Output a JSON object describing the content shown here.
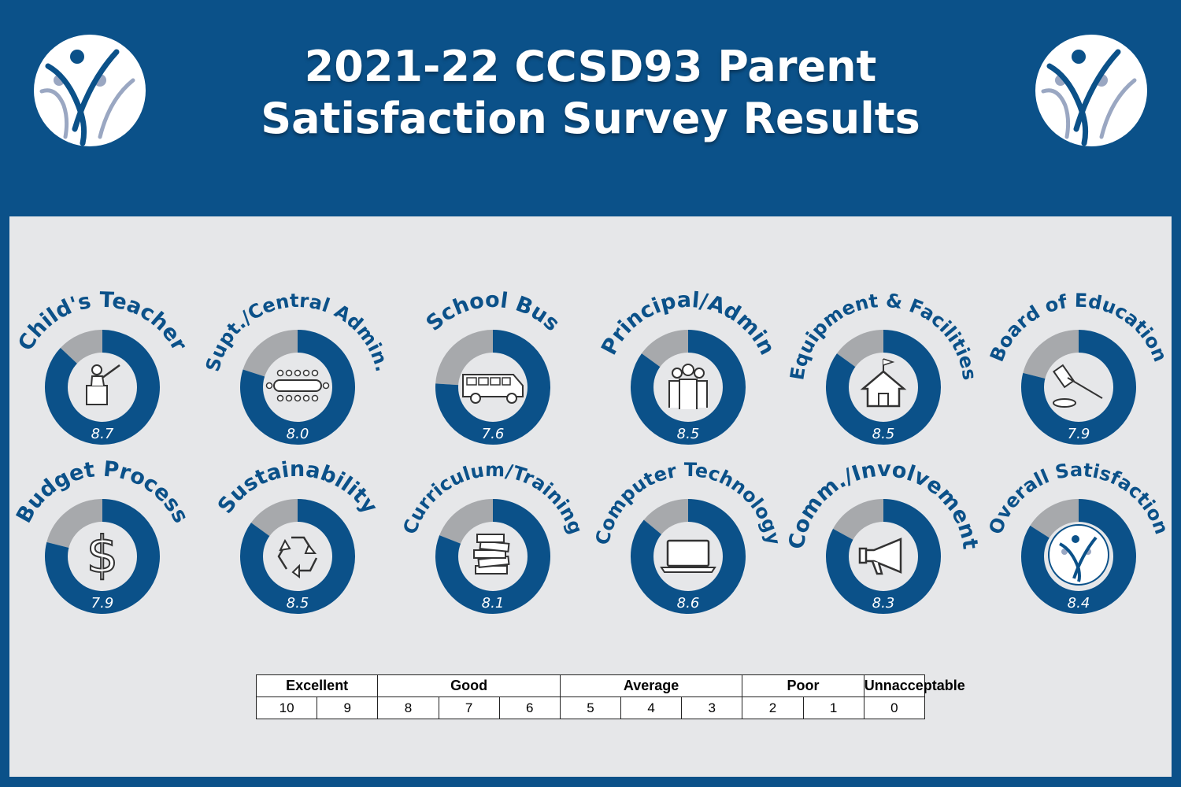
{
  "header": {
    "title_line1": "2021-22 CCSD93 Parent",
    "title_line2": "Satisfaction Survey Results"
  },
  "colors": {
    "background": "#0b5189",
    "panel": "#e6e7e9",
    "score_ring": "#0b5189",
    "remainder_ring": "#a7a9ac",
    "text_white": "#ffffff"
  },
  "chart_data": {
    "type": "pie",
    "subtype": "donut",
    "scale_max": 10,
    "categories": [
      {
        "label": "Child's Teacher",
        "value": 8.7,
        "icon": "teacher-icon"
      },
      {
        "label": "Supt./Central Admin.",
        "value": 8.0,
        "icon": "conference-table-icon"
      },
      {
        "label": "School Bus",
        "value": 7.6,
        "icon": "school-bus-icon"
      },
      {
        "label": "Principal/Admin",
        "value": 8.5,
        "icon": "people-group-icon"
      },
      {
        "label": "Equipment & Facilities",
        "value": 8.5,
        "icon": "schoolhouse-icon"
      },
      {
        "label": "Board of Education",
        "value": 7.9,
        "icon": "gavel-icon"
      },
      {
        "label": "Budget Process",
        "value": 7.9,
        "icon": "dollar-icon"
      },
      {
        "label": "Sustainability",
        "value": 8.5,
        "icon": "recycle-icon"
      },
      {
        "label": "Curriculum/Training",
        "value": 8.1,
        "icon": "books-icon"
      },
      {
        "label": "Computer Technology",
        "value": 8.6,
        "icon": "laptop-icon"
      },
      {
        "label": "Comm./Involvement",
        "value": 8.3,
        "icon": "megaphone-icon"
      },
      {
        "label": "Overall Satisfaction",
        "value": 8.4,
        "icon": "ccsd93-logo-icon"
      }
    ]
  },
  "rating_scale": {
    "groups": [
      "Excellent",
      "Good",
      "Average",
      "Poor",
      "Unnacceptable"
    ],
    "values": [
      "10",
      "9",
      "8",
      "7",
      "6",
      "5",
      "4",
      "3",
      "2",
      "1",
      "0"
    ]
  }
}
